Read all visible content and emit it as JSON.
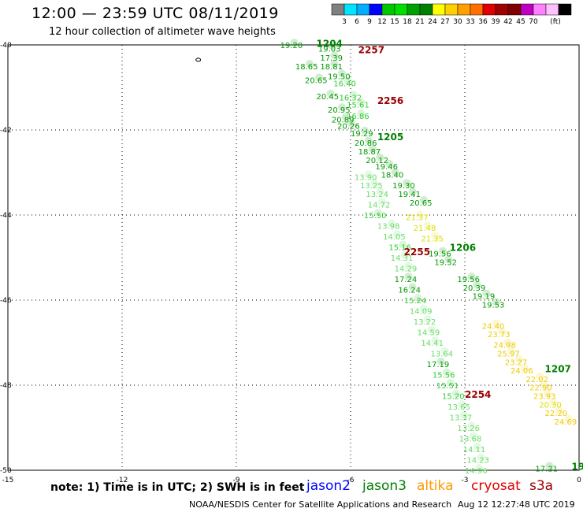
{
  "header": {
    "title": "12:00 — 23:59 UTC 08/11/2019",
    "subtitle": "12 hour collection of altimeter wave heights"
  },
  "colorbar": {
    "colors": [
      "#808080",
      "#00e5ff",
      "#00b0ff",
      "#0000ff",
      "#00c800",
      "#00e000",
      "#00a000",
      "#008000",
      "#ffff00",
      "#ffd000",
      "#ffa000",
      "#ff7000",
      "#e00000",
      "#a00000",
      "#800000",
      "#c000c0",
      "#ff80ff",
      "#ffc0ff",
      "#000000"
    ],
    "labels": [
      "3",
      "6",
      "9",
      "12",
      "15",
      "18",
      "21",
      "24",
      "27",
      "30",
      "33",
      "36",
      "39",
      "42",
      "45",
      "70",
      "(ft)"
    ]
  },
  "footer": {
    "note": "note:  1) Time is in UTC;  2) SWH is in feet",
    "legend": [
      {
        "name": "jason2",
        "color": "#0000ff"
      },
      {
        "name": "jason3",
        "color": "#008000"
      },
      {
        "name": "altika",
        "color": "#ff9900"
      },
      {
        "name": "cryosat",
        "color": "#e00000"
      },
      {
        "name": "s3a",
        "color": "#990000"
      }
    ],
    "credit": "NOAA/NESDIS Center for Satellite Applications and Research",
    "timestamp": "Aug 12 12:27:48 UTC 2019"
  },
  "chart_data": {
    "type": "scatter",
    "title": "12:00 — 23:59 UTC 08/11/2019",
    "subtitle": "12 hour collection of altimeter wave heights",
    "xlim": [
      -15,
      0
    ],
    "ylim": [
      -50,
      -40
    ],
    "x_ticks": [
      -15,
      -12,
      -9,
      -6,
      -3,
      0
    ],
    "y_ticks": [
      -40,
      -42,
      -44,
      -46,
      -48,
      -50
    ],
    "grid": true,
    "pass_labels": [
      {
        "text": "2257",
        "x": -5.8,
        "y": -40.1,
        "color": "#990000"
      },
      {
        "text": "2256",
        "x": -5.3,
        "y": -41.3,
        "color": "#990000"
      },
      {
        "text": "2255",
        "x": -4.6,
        "y": -44.85,
        "color": "#990000"
      },
      {
        "text": "2254",
        "x": -3.0,
        "y": -48.2,
        "color": "#990000"
      },
      {
        "text": "1204",
        "x": -6.9,
        "y": -39.95,
        "color": "#008000"
      },
      {
        "text": "1205",
        "x": -5.3,
        "y": -42.15,
        "color": "#008000"
      },
      {
        "text": "1206",
        "x": -3.4,
        "y": -44.75,
        "color": "#008000"
      },
      {
        "text": "1207",
        "x": -0.9,
        "y": -47.6,
        "color": "#008000"
      },
      {
        "text": "19",
        "x": -0.2,
        "y": -49.9,
        "color": "#008000"
      }
    ],
    "observations": [
      {
        "text": "19.20",
        "x": -7.85,
        "y": -40.0,
        "color": "#009900"
      },
      {
        "text": "19.03",
        "x": -6.85,
        "y": -40.08,
        "color": "#009900"
      },
      {
        "text": "17.39",
        "x": -6.8,
        "y": -40.3,
        "color": "#009900"
      },
      {
        "text": "18.65",
        "x": -7.45,
        "y": -40.5,
        "color": "#009900"
      },
      {
        "text": "18.81",
        "x": -6.8,
        "y": -40.5,
        "color": "#009900"
      },
      {
        "text": "19.50",
        "x": -6.6,
        "y": -40.73,
        "color": "#009900"
      },
      {
        "text": "20.65",
        "x": -7.2,
        "y": -40.82,
        "color": "#009900"
      },
      {
        "text": "16.40",
        "x": -6.45,
        "y": -40.9,
        "color": "#33cc33"
      },
      {
        "text": "20.45",
        "x": -6.9,
        "y": -41.2,
        "color": "#009900"
      },
      {
        "text": "16.32",
        "x": -6.3,
        "y": -41.23,
        "color": "#33cc33"
      },
      {
        "text": "15.61",
        "x": -6.1,
        "y": -41.4,
        "color": "#33cc33"
      },
      {
        "text": "20.95",
        "x": -6.6,
        "y": -41.52,
        "color": "#009900"
      },
      {
        "text": "16.86",
        "x": -6.1,
        "y": -41.67,
        "color": "#33cc33"
      },
      {
        "text": "20.89",
        "x": -6.5,
        "y": -41.75,
        "color": "#009900"
      },
      {
        "text": "20.26",
        "x": -6.35,
        "y": -41.9,
        "color": "#009900"
      },
      {
        "text": "19.29",
        "x": -6.0,
        "y": -42.07,
        "color": "#009900"
      },
      {
        "text": "20.86",
        "x": -5.9,
        "y": -42.3,
        "color": "#009900"
      },
      {
        "text": "18.87",
        "x": -5.8,
        "y": -42.5,
        "color": "#009900"
      },
      {
        "text": "20.12",
        "x": -5.6,
        "y": -42.7,
        "color": "#009900"
      },
      {
        "text": "19.46",
        "x": -5.35,
        "y": -42.85,
        "color": "#009900"
      },
      {
        "text": "18.40",
        "x": -5.2,
        "y": -43.05,
        "color": "#009900"
      },
      {
        "text": "19.30",
        "x": -4.9,
        "y": -43.3,
        "color": "#009900"
      },
      {
        "text": "19.41",
        "x": -4.75,
        "y": -43.5,
        "color": "#009900"
      },
      {
        "text": "20.65",
        "x": -4.45,
        "y": -43.7,
        "color": "#009900"
      },
      {
        "text": "13.90",
        "x": -5.9,
        "y": -43.1,
        "color": "#66dd66"
      },
      {
        "text": "13.25",
        "x": -5.75,
        "y": -43.3,
        "color": "#66dd66"
      },
      {
        "text": "13.24",
        "x": -5.6,
        "y": -43.5,
        "color": "#66dd66"
      },
      {
        "text": "14.72",
        "x": -5.55,
        "y": -43.75,
        "color": "#66dd66"
      },
      {
        "text": "15.50",
        "x": -5.65,
        "y": -44.0,
        "color": "#33cc33"
      },
      {
        "text": "13.98",
        "x": -5.3,
        "y": -44.25,
        "color": "#66dd66"
      },
      {
        "text": "14.05",
        "x": -5.15,
        "y": -44.5,
        "color": "#66dd66"
      },
      {
        "text": "15.16",
        "x": -5.0,
        "y": -44.75,
        "color": "#33cc33"
      },
      {
        "text": "14.31",
        "x": -4.95,
        "y": -45.0,
        "color": "#66dd66"
      },
      {
        "text": "14.29",
        "x": -4.85,
        "y": -45.25,
        "color": "#66dd66"
      },
      {
        "text": "17.24",
        "x": -4.85,
        "y": -45.5,
        "color": "#009900"
      },
      {
        "text": "16.24",
        "x": -4.75,
        "y": -45.75,
        "color": "#009900"
      },
      {
        "text": "15.24",
        "x": -4.6,
        "y": -46.0,
        "color": "#33cc33"
      },
      {
        "text": "14.09",
        "x": -4.45,
        "y": -46.25,
        "color": "#66dd66"
      },
      {
        "text": "13.22",
        "x": -4.35,
        "y": -46.5,
        "color": "#66dd66"
      },
      {
        "text": "14.59",
        "x": -4.25,
        "y": -46.75,
        "color": "#66dd66"
      },
      {
        "text": "14.41",
        "x": -4.15,
        "y": -47.0,
        "color": "#66dd66"
      },
      {
        "text": "13.64",
        "x": -3.9,
        "y": -47.25,
        "color": "#66dd66"
      },
      {
        "text": "17.19",
        "x": -4.0,
        "y": -47.5,
        "color": "#009900"
      },
      {
        "text": "15.56",
        "x": -3.85,
        "y": -47.75,
        "color": "#33cc33"
      },
      {
        "text": "15.51",
        "x": -3.75,
        "y": -48.0,
        "color": "#33cc33"
      },
      {
        "text": "15.20",
        "x": -3.6,
        "y": -48.25,
        "color": "#33cc33"
      },
      {
        "text": "13.65",
        "x": -3.45,
        "y": -48.5,
        "color": "#66dd66"
      },
      {
        "text": "13.37",
        "x": -3.4,
        "y": -48.75,
        "color": "#66dd66"
      },
      {
        "text": "13.26",
        "x": -3.2,
        "y": -49.0,
        "color": "#66dd66"
      },
      {
        "text": "13.68",
        "x": -3.15,
        "y": -49.25,
        "color": "#66dd66"
      },
      {
        "text": "14.11",
        "x": -3.05,
        "y": -49.5,
        "color": "#66dd66"
      },
      {
        "text": "14.23",
        "x": -2.95,
        "y": -49.75,
        "color": "#66dd66"
      },
      {
        "text": "14.96",
        "x": -3.0,
        "y": -50.0,
        "color": "#66dd66"
      },
      {
        "text": "19.56",
        "x": -3.95,
        "y": -44.9,
        "color": "#009900"
      },
      {
        "text": "19.52",
        "x": -3.8,
        "y": -45.1,
        "color": "#009900"
      },
      {
        "text": "19.56",
        "x": -3.2,
        "y": -45.5,
        "color": "#009900"
      },
      {
        "text": "20.39",
        "x": -3.05,
        "y": -45.7,
        "color": "#009900"
      },
      {
        "text": "19.19",
        "x": -2.8,
        "y": -45.9,
        "color": "#009900"
      },
      {
        "text": "19.53",
        "x": -2.55,
        "y": -46.1,
        "color": "#009900"
      },
      {
        "text": "21.37",
        "x": -4.55,
        "y": -44.05,
        "color": "#dddd00"
      },
      {
        "text": "21.48",
        "x": -4.35,
        "y": -44.3,
        "color": "#dddd00"
      },
      {
        "text": "21.35",
        "x": -4.15,
        "y": -44.55,
        "color": "#dddd00"
      },
      {
        "text": "24.40",
        "x": -2.55,
        "y": -46.6,
        "color": "#eecc00"
      },
      {
        "text": "23.73",
        "x": -2.4,
        "y": -46.8,
        "color": "#eecc00"
      },
      {
        "text": "24.98",
        "x": -2.25,
        "y": -47.05,
        "color": "#eecc00"
      },
      {
        "text": "25.97",
        "x": -2.15,
        "y": -47.25,
        "color": "#eecc00"
      },
      {
        "text": "23.27",
        "x": -1.95,
        "y": -47.45,
        "color": "#eecc00"
      },
      {
        "text": "24.06",
        "x": -1.8,
        "y": -47.65,
        "color": "#eecc00"
      },
      {
        "text": "22.02",
        "x": -1.4,
        "y": -47.85,
        "color": "#eecc00"
      },
      {
        "text": "22.90",
        "x": -1.3,
        "y": -48.05,
        "color": "#eecc00"
      },
      {
        "text": "23.93",
        "x": -1.2,
        "y": -48.25,
        "color": "#eecc00"
      },
      {
        "text": "20.30",
        "x": -1.05,
        "y": -48.45,
        "color": "#dddd00"
      },
      {
        "text": "22.20",
        "x": -0.9,
        "y": -48.65,
        "color": "#eecc00"
      },
      {
        "text": "24.69",
        "x": -0.65,
        "y": -48.85,
        "color": "#eecc00"
      },
      {
        "text": "17.21",
        "x": -1.15,
        "y": -49.95,
        "color": "#009900"
      }
    ],
    "small_marker": {
      "x": -10.0,
      "y": -40.35
    }
  }
}
